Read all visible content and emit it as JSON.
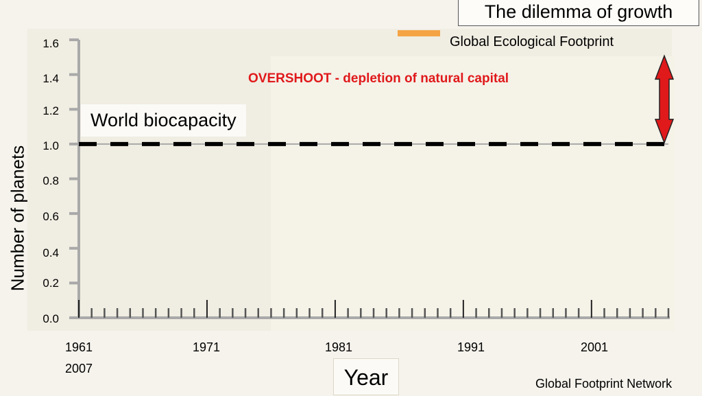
{
  "slide_title": "The dilemma of growth",
  "source": "Global Footprint Network",
  "chart_data": {
    "type": "line",
    "title": "",
    "xlabel": "Year",
    "ylabel": "Number of planets",
    "ylim": [
      0,
      1.6
    ],
    "xlim": [
      1961,
      2007
    ],
    "y_ticks": [
      "0.0",
      "0.2",
      "0.4",
      "0.6",
      "0.8",
      "1.0",
      "1.2",
      "1.4",
      "1.6"
    ],
    "x_ticks": [
      "1961",
      "1971",
      "1981",
      "1991",
      "2001"
    ],
    "x_tick_extra": "2007",
    "legend": {
      "entries": [
        "Global Ecological Footprint"
      ],
      "position": "top-right",
      "colors": [
        "#f4a445"
      ]
    },
    "series": [
      {
        "name": "World biocapacity",
        "style": "dashed",
        "color": "#000000",
        "x": [
          1961,
          2007
        ],
        "y": [
          1.0,
          1.0
        ]
      }
    ],
    "annotations": {
      "biocapacity_label": "World biocapacity",
      "overshoot_label": "OVERSHOOT -  depletion of natural capital",
      "overshoot_arrow": {
        "x": 2007,
        "from": 1.0,
        "to": 1.5,
        "color": "#e0191b"
      }
    },
    "grid": false
  }
}
